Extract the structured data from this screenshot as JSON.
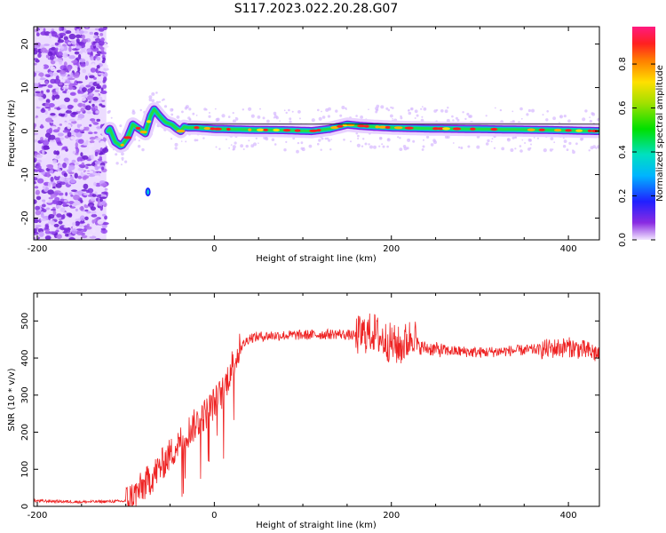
{
  "figure": {
    "title": "S117.2023.022.20.28.G07"
  },
  "chart_data": [
    {
      "type": "heatmap",
      "xlabel": "Height of straight line (km)",
      "ylabel": "Frequency (Hz)",
      "xlim": [
        -204,
        435
      ],
      "ylim": [
        -25,
        24
      ],
      "xticks": [
        -200,
        0,
        200,
        400
      ],
      "yticks": [
        -20,
        -10,
        0,
        10,
        20
      ],
      "colorbar": {
        "label": "Normalized spectral amplitude",
        "range": [
          0,
          0.97
        ],
        "ticks": [
          0.0,
          0.2,
          0.4,
          0.6,
          0.8
        ]
      },
      "ridge": {
        "x": [
          -118,
          -112,
          -105,
          -98,
          -92,
          -85,
          -78,
          -72,
          -68,
          -62,
          -55,
          -48,
          -42,
          -38,
          -34,
          -30,
          -20,
          0,
          40,
          80,
          110,
          130,
          150,
          165,
          180,
          200,
          240,
          280,
          320,
          360,
          390,
          410,
          435
        ],
        "y": [
          0.5,
          -2.5,
          -3.5,
          -1.5,
          1.5,
          0.5,
          -0.5,
          3.5,
          5,
          3.5,
          2,
          1.5,
          0.5,
          0,
          1,
          0.8,
          0.8,
          0.5,
          0.3,
          0.2,
          0,
          0.5,
          1.5,
          1.2,
          1,
          0.8,
          0.6,
          0.5,
          0.4,
          0.3,
          0.2,
          0.1,
          0
        ]
      },
      "outlier": {
        "x": -75,
        "y": -14
      },
      "noise_region_x": [
        -204,
        -122
      ]
    },
    {
      "type": "line",
      "xlabel": "Height of straight line (km)",
      "ylabel": "SNR (10 * v/v)",
      "xlim": [
        -204,
        435
      ],
      "ylim": [
        0,
        575
      ],
      "xticks": [
        -200,
        0,
        200,
        400
      ],
      "yticks": [
        0,
        100,
        200,
        300,
        400,
        500
      ],
      "color": "#ee2222",
      "series": [
        {
          "x": [
            -204,
            -150,
            -100,
            -90,
            -80,
            -70,
            -60,
            -50,
            -40,
            -30,
            -20,
            -10,
            0,
            10,
            20,
            30,
            40,
            60,
            100,
            140,
            160,
            180,
            190,
            200,
            210,
            220,
            225,
            230,
            260,
            300,
            340,
            380,
            400,
            420,
            435
          ],
          "y": [
            15,
            12,
            14,
            30,
            55,
            80,
            110,
            140,
            170,
            200,
            225,
            250,
            280,
            310,
            380,
            430,
            455,
            460,
            462,
            465,
            460,
            470,
            450,
            440,
            430,
            450,
            470,
            430,
            420,
            415,
            420,
            425,
            430,
            420,
            410
          ]
        }
      ]
    }
  ]
}
